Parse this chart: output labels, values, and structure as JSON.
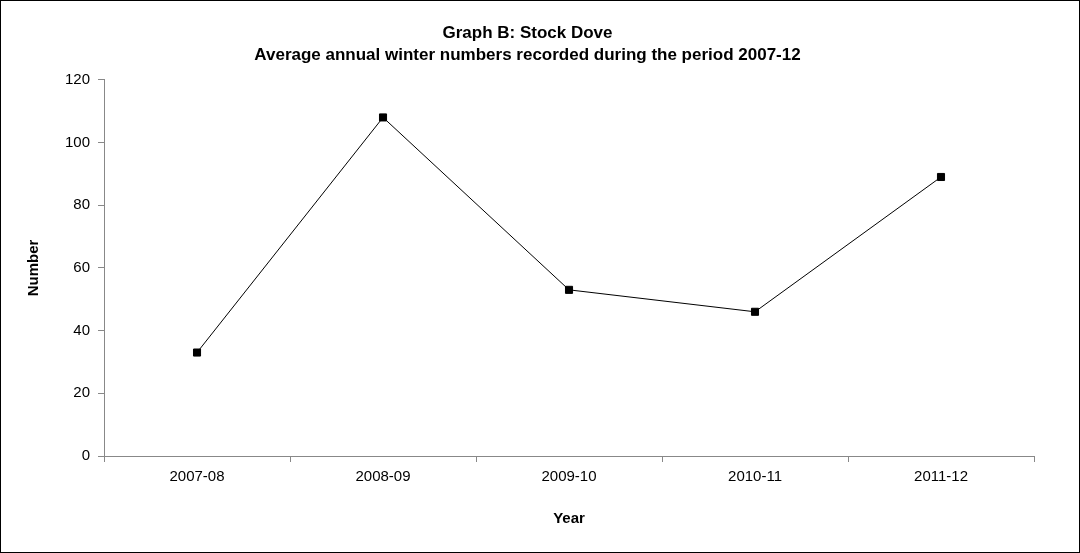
{
  "chart_data": {
    "type": "line",
    "title": "Graph B: Stock Dove",
    "subtitle": "Average annual winter numbers recorded during the period 2007-12",
    "xlabel": "Year",
    "ylabel": "Number",
    "categories": [
      "2007-08",
      "2008-09",
      "2009-10",
      "2010-11",
      "2011-12"
    ],
    "series": [
      {
        "color": "#000000",
        "values": [
          33,
          108,
          53,
          46,
          89
        ]
      }
    ],
    "ylim": [
      0,
      120
    ],
    "yticks": [
      0,
      20,
      40,
      60,
      80,
      100,
      120
    ],
    "grid": false,
    "legend": false,
    "marker": "square",
    "line_style": "solid"
  }
}
